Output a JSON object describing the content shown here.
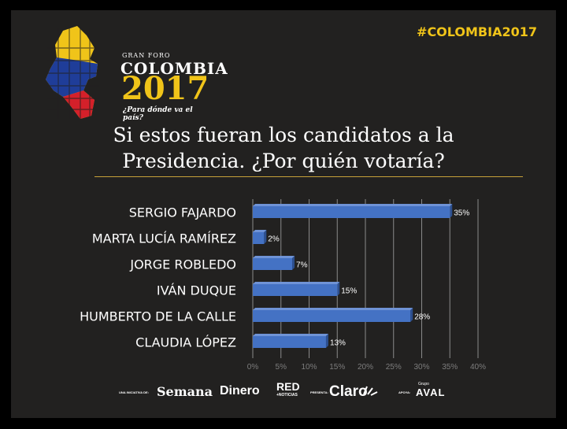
{
  "header": {
    "logo_small": "GRAN FORO",
    "logo_country": "COLOMBIA",
    "logo_year": "2017",
    "logo_tagline": "¿Para dónde va el país?",
    "hashtag": "#COLOMBIA2017"
  },
  "title": {
    "line1": "Si estos fueran los candidatos a la",
    "line2": "Presidencia. ¿Por quién votaría?"
  },
  "chart_data": {
    "type": "bar",
    "orientation": "horizontal",
    "categories": [
      "SERGIO FAJARDO",
      "MARTA LUCÍA RAMÍREZ",
      "JORGE ROBLEDO",
      "IVÁN DUQUE",
      "HUMBERTO DE LA CALLE",
      "CLAUDIA LÓPEZ"
    ],
    "values": [
      35,
      2,
      7,
      15,
      28,
      13
    ],
    "data_labels": [
      "35%",
      "2%",
      "7%",
      "15%",
      "28%",
      "13%"
    ],
    "x_ticks": [
      "0%",
      "5%",
      "10%",
      "15%",
      "20%",
      "25%",
      "30%",
      "35%",
      "40%"
    ],
    "xlim": [
      0,
      40
    ],
    "grid": "vertical",
    "bar_color": "#4472c4"
  },
  "footer": {
    "sponsor_intro": "UNA INICIATIVA DE:",
    "sponsor_semana": "Semana",
    "sponsor_dinero": "Dinero",
    "sponsor_red_top": "RED",
    "sponsor_red_bottom": "+NOTICIAS",
    "presenta": "PRESENTA:",
    "sponsor_claro": "Claro",
    "apoya": "APOYA:",
    "sponsor_grupo": "Grupo",
    "sponsor_aval": "AVAL"
  },
  "colors": {
    "background": "#222120",
    "accent": "#f0c419",
    "bar": "#4472c4"
  }
}
